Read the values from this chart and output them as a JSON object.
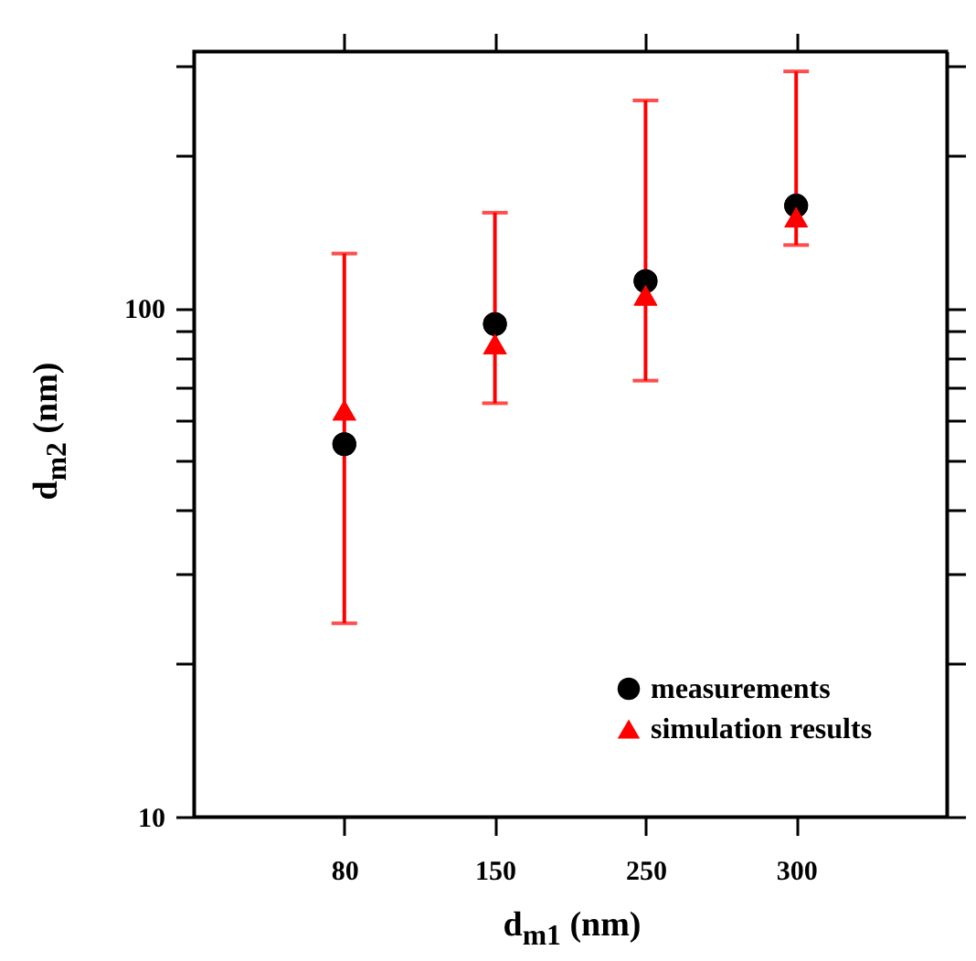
{
  "chart_data": {
    "type": "scatter",
    "xlabel": "d$_{m1}$ (nm)",
    "ylabel": "d$_{m2}$ (nm)",
    "categories": [
      "80",
      "150",
      "250",
      "300"
    ],
    "log": "y",
    "ylim": [
      10,
      320
    ],
    "yticks": [
      10,
      {
        "value": 20,
        "label": null
      },
      {
        "value": 30,
        "label": null
      },
      {
        "value": 40,
        "label": null
      },
      {
        "value": 50,
        "label": null
      },
      {
        "value": 60,
        "label": null
      },
      {
        "value": 70,
        "label": null
      },
      {
        "value": 80,
        "label": null
      },
      {
        "value": 90,
        "label": null
      },
      100,
      {
        "value": 200,
        "label": null
      },
      {
        "value": 300,
        "label": null
      }
    ],
    "legend": "bottom right",
    "series": [
      {
        "name": "measurements",
        "color": "#000000",
        "marker": "circle",
        "values": [
          54,
          93,
          113,
          159
        ]
      },
      {
        "name": "simulation results",
        "color": "#ff0000",
        "marker": "triangle",
        "values": [
          63,
          85,
          106,
          151
        ],
        "errors": [
          [
            24,
            128
          ],
          [
            65,
            154
          ],
          [
            72,
            256
          ],
          [
            133,
            292
          ]
        ]
      }
    ]
  }
}
